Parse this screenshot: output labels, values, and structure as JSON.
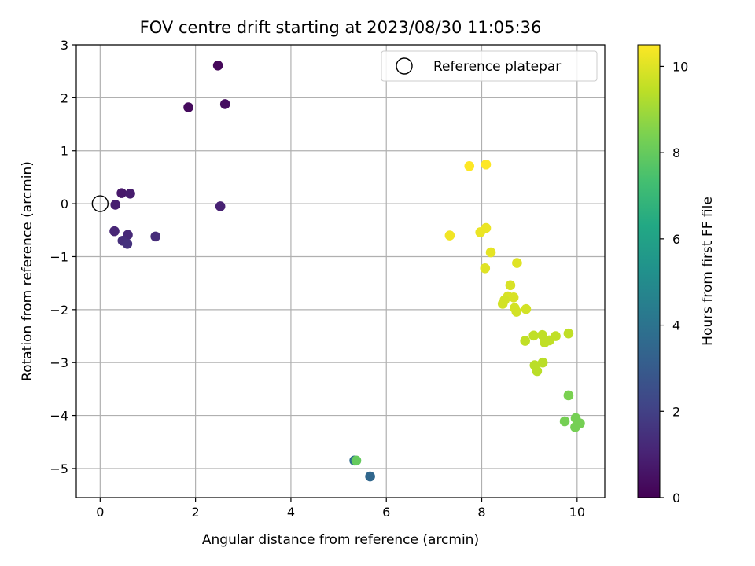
{
  "chart_data": {
    "type": "scatter",
    "title": "FOV centre drift starting at 2023/08/30 11:05:36",
    "xlabel": "Angular distance from reference (arcmin)",
    "ylabel": "Rotation from reference (arcmin)",
    "xlim": [
      -0.5,
      10.58
    ],
    "ylim": [
      -5.55,
      3.0
    ],
    "xticks": [
      0,
      2,
      4,
      6,
      8,
      10
    ],
    "yticks": [
      -5,
      -4,
      -3,
      -2,
      -1,
      0,
      1,
      2,
      3
    ],
    "grid": true,
    "legend": {
      "position": "top-right",
      "entries": [
        {
          "label": "Reference platepar",
          "marker": "open-circle",
          "x": 0,
          "y": 0
        }
      ]
    },
    "colorbar": {
      "label": "Hours from first FF file",
      "colormap": "viridis",
      "range": [
        0,
        10.5
      ],
      "ticks": [
        0,
        2,
        4,
        6,
        8,
        10
      ]
    },
    "points": [
      {
        "x": 2.47,
        "y": 2.61,
        "c": 0.2
      },
      {
        "x": 1.85,
        "y": 1.82,
        "c": 0.3
      },
      {
        "x": 2.62,
        "y": 1.88,
        "c": 0.4
      },
      {
        "x": 0.45,
        "y": 0.2,
        "c": 0.7
      },
      {
        "x": 0.63,
        "y": 0.19,
        "c": 0.8
      },
      {
        "x": 0.32,
        "y": -0.02,
        "c": 0.9
      },
      {
        "x": 2.52,
        "y": -0.05,
        "c": 1.0
      },
      {
        "x": 0.3,
        "y": -0.52,
        "c": 1.1
      },
      {
        "x": 0.58,
        "y": -0.59,
        "c": 1.2
      },
      {
        "x": 1.16,
        "y": -0.62,
        "c": 1.3
      },
      {
        "x": 0.47,
        "y": -0.7,
        "c": 1.4
      },
      {
        "x": 0.57,
        "y": -0.76,
        "c": 1.5
      },
      {
        "x": 5.33,
        "y": -4.85,
        "c": 3.7
      },
      {
        "x": 5.66,
        "y": -5.15,
        "c": 3.5
      },
      {
        "x": 5.37,
        "y": -4.85,
        "c": 8.0
      },
      {
        "x": 9.82,
        "y": -3.62,
        "c": 8.4
      },
      {
        "x": 9.74,
        "y": -4.11,
        "c": 8.3
      },
      {
        "x": 9.97,
        "y": -4.05,
        "c": 8.3
      },
      {
        "x": 10.06,
        "y": -4.15,
        "c": 8.3
      },
      {
        "x": 9.96,
        "y": -4.22,
        "c": 8.3
      },
      {
        "x": 9.82,
        "y": -2.45,
        "c": 9.5
      },
      {
        "x": 9.09,
        "y": -2.49,
        "c": 9.5
      },
      {
        "x": 9.27,
        "y": -2.48,
        "c": 9.5
      },
      {
        "x": 9.55,
        "y": -2.5,
        "c": 9.5
      },
      {
        "x": 9.32,
        "y": -2.62,
        "c": 9.5
      },
      {
        "x": 8.91,
        "y": -2.59,
        "c": 9.5
      },
      {
        "x": 9.42,
        "y": -2.58,
        "c": 9.5
      },
      {
        "x": 9.11,
        "y": -3.05,
        "c": 9.4
      },
      {
        "x": 9.28,
        "y": -3.0,
        "c": 9.4
      },
      {
        "x": 9.16,
        "y": -3.16,
        "c": 9.4
      },
      {
        "x": 8.6,
        "y": -1.54,
        "c": 9.9
      },
      {
        "x": 8.55,
        "y": -1.75,
        "c": 9.9
      },
      {
        "x": 8.67,
        "y": -1.77,
        "c": 9.9
      },
      {
        "x": 8.48,
        "y": -1.82,
        "c": 9.8
      },
      {
        "x": 8.44,
        "y": -1.89,
        "c": 9.8
      },
      {
        "x": 8.69,
        "y": -1.97,
        "c": 9.8
      },
      {
        "x": 8.73,
        "y": -2.04,
        "c": 9.8
      },
      {
        "x": 8.93,
        "y": -1.99,
        "c": 9.8
      },
      {
        "x": 8.74,
        "y": -1.12,
        "c": 10.0
      },
      {
        "x": 8.07,
        "y": -1.22,
        "c": 10.0
      },
      {
        "x": 8.19,
        "y": -0.92,
        "c": 10.1
      },
      {
        "x": 8.09,
        "y": -0.46,
        "c": 10.2
      },
      {
        "x": 7.97,
        "y": -0.54,
        "c": 10.2
      },
      {
        "x": 7.33,
        "y": -0.6,
        "c": 10.3
      },
      {
        "x": 7.74,
        "y": 0.71,
        "c": 10.5
      },
      {
        "x": 8.09,
        "y": 0.74,
        "c": 10.5
      }
    ]
  }
}
